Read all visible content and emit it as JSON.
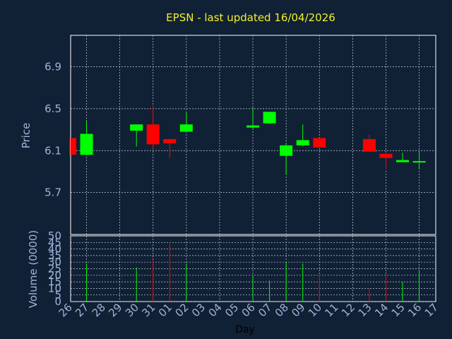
{
  "chart_data": [
    {
      "type": "candlestick",
      "title": "EPSN - last updated 16/04/2026",
      "ylabel": "Price",
      "yticks": [
        "5.7",
        "6.1",
        "6.5",
        "6.9"
      ],
      "ylim": [
        5.3,
        7.2
      ],
      "xticks": [
        "26",
        "27",
        "28",
        "29",
        "30",
        "31",
        "01",
        "02",
        "03",
        "04",
        "05",
        "06",
        "07",
        "08",
        "09",
        "10",
        "11",
        "12",
        "13",
        "14",
        "15",
        "16",
        "17"
      ],
      "grid": true,
      "candles": [
        {
          "day": "26",
          "open": 6.06,
          "close": 6.22,
          "high": 6.22,
          "low": 6.06,
          "color": "#ff0000"
        },
        {
          "day": "27",
          "open": 6.06,
          "close": 6.26,
          "high": 6.38,
          "low": 6.06,
          "color": "#00ff00"
        },
        {
          "day": "30",
          "open": 6.29,
          "close": 6.35,
          "high": 6.35,
          "low": 6.14,
          "color": "#00ff00"
        },
        {
          "day": "31",
          "open": 6.35,
          "close": 6.16,
          "high": 6.53,
          "low": 6.11,
          "color": "#ff0000"
        },
        {
          "day": "01",
          "open": 6.21,
          "close": 6.17,
          "high": 6.21,
          "low": 6.03,
          "color": "#ff0000"
        },
        {
          "day": "02",
          "open": 6.28,
          "close": 6.35,
          "high": 6.47,
          "low": 6.28,
          "color": "#00ff00"
        },
        {
          "day": "06",
          "open": 6.32,
          "close": 6.34,
          "high": 6.51,
          "low": 6.3,
          "color": "#00ff00"
        },
        {
          "day": "07",
          "open": 6.36,
          "close": 6.47,
          "high": 6.47,
          "low": 6.36,
          "color": "#00ff00"
        },
        {
          "day": "08",
          "open": 6.05,
          "close": 6.15,
          "high": 6.17,
          "low": 5.87,
          "color": "#00ff00"
        },
        {
          "day": "09",
          "open": 6.15,
          "close": 6.2,
          "high": 6.35,
          "low": 6.14,
          "color": "#00ff00"
        },
        {
          "day": "10",
          "open": 6.22,
          "close": 6.13,
          "high": 6.22,
          "low": 6.13,
          "color": "#ff0000"
        },
        {
          "day": "13",
          "open": 6.21,
          "close": 6.09,
          "high": 6.25,
          "low": 6.09,
          "color": "#ff0000"
        },
        {
          "day": "14",
          "open": 6.07,
          "close": 6.03,
          "high": 6.07,
          "low": 5.92,
          "color": "#ff0000"
        },
        {
          "day": "15",
          "open": 5.99,
          "close": 6.01,
          "high": 6.08,
          "low": 5.99,
          "color": "#00ff00"
        },
        {
          "day": "16",
          "open": 5.99,
          "close": 6.0,
          "high": 6.08,
          "low": 5.92,
          "color": "#00ff00"
        }
      ]
    },
    {
      "type": "bar",
      "ylabel": "Volume (0000)",
      "xlabel": "Day",
      "yticks": [
        "0",
        "5",
        "10",
        "15",
        "20",
        "25",
        "30",
        "35",
        "40",
        "45",
        "50"
      ],
      "ylim": [
        0,
        50
      ],
      "grid": true,
      "categories": [
        "26",
        "27",
        "30",
        "31",
        "01",
        "02",
        "06",
        "07",
        "08",
        "09",
        "10",
        "13",
        "14",
        "15",
        "16"
      ],
      "values": [
        0,
        29,
        26,
        32,
        44,
        29,
        19,
        16,
        30,
        29,
        20,
        10,
        20,
        15,
        24
      ],
      "colors": [
        "#ff0000",
        "#00ff00",
        "#00ff00",
        "#ff0000",
        "#ff0000",
        "#00ff00",
        "#00ff00",
        "#00ff00",
        "#00ff00",
        "#00ff00",
        "#ff0000",
        "#ff0000",
        "#ff0000",
        "#00ff00",
        "#00ff00"
      ]
    }
  ]
}
